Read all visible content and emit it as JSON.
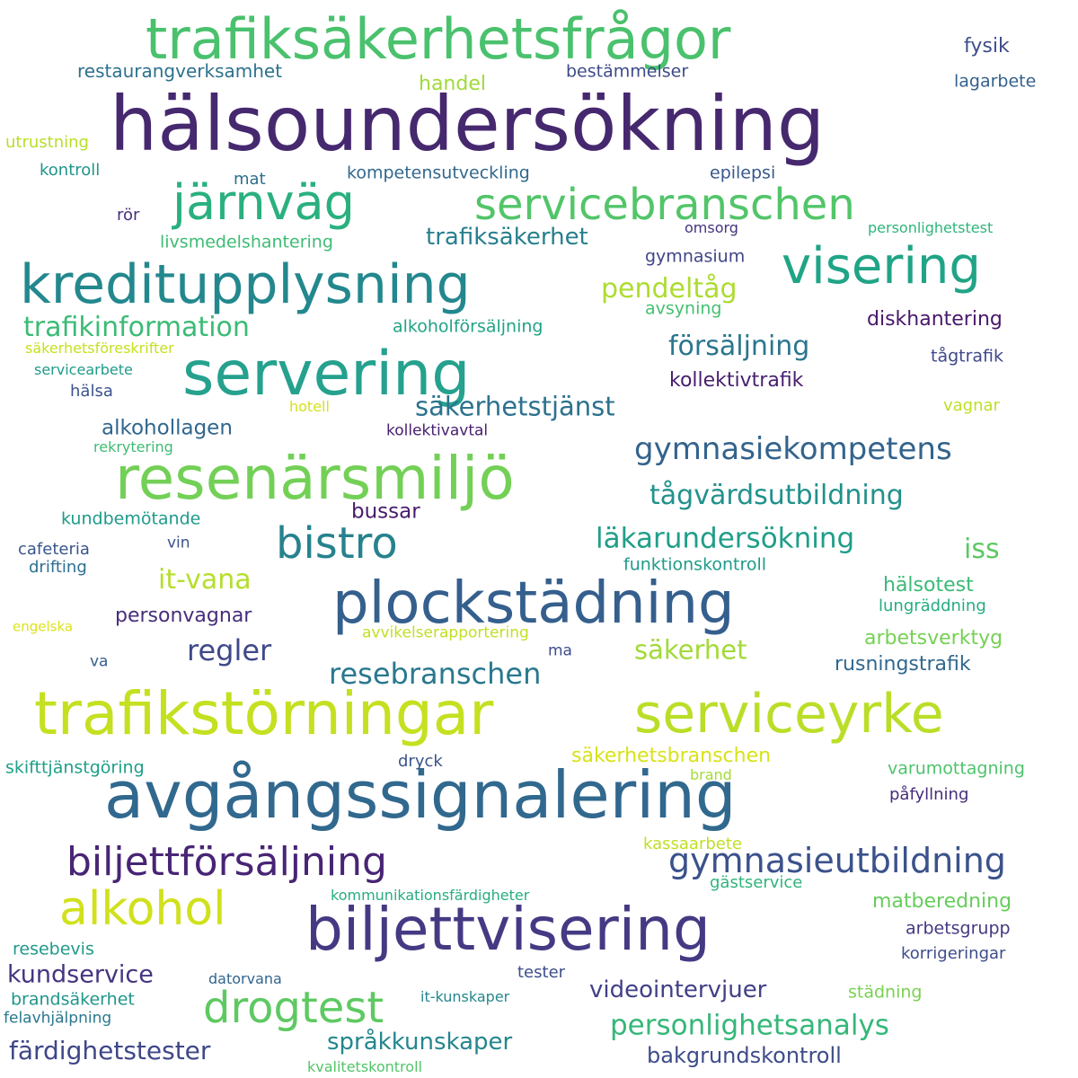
{
  "words": [
    {
      "text": "hälsoundersökning",
      "color": "#46286f"
    },
    {
      "text": "trafiksäkerhetsfrågor",
      "color": "#4ac16d"
    },
    {
      "text": "avgångssignalering",
      "color": "#31688e"
    },
    {
      "text": "trafikstörningar",
      "color": "#c5e021"
    },
    {
      "text": "serviceyrke",
      "color": "#bade28"
    },
    {
      "text": "biljettvisering",
      "color": "#443a83"
    },
    {
      "text": "plockstädning",
      "color": "#355f8d"
    },
    {
      "text": "resenärsmiljö",
      "color": "#73d056"
    },
    {
      "text": "servering",
      "color": "#25a18e"
    },
    {
      "text": "kreditupplysning",
      "color": "#23888e"
    },
    {
      "text": "visering",
      "color": "#20a486"
    },
    {
      "text": "servicebranschen",
      "color": "#52c569"
    },
    {
      "text": "järnväg",
      "color": "#2ab07f"
    },
    {
      "text": "bistro",
      "color": "#26828e"
    },
    {
      "text": "alkohol",
      "color": "#d0e11c"
    },
    {
      "text": "drogtest",
      "color": "#5ec962"
    },
    {
      "text": "biljettförsäljning",
      "color": "#482475"
    },
    {
      "text": "gymnasieutbildning",
      "color": "#3b528b"
    },
    {
      "text": "gymnasiekompetens",
      "color": "#33638d"
    },
    {
      "text": "trafikinformation",
      "color": "#3bbb75"
    },
    {
      "text": "personlighetsanalys",
      "color": "#35b779"
    },
    {
      "text": "läkarundersökning",
      "color": "#1f9e89"
    },
    {
      "text": "tågvärdsutbildning",
      "color": "#21918c"
    },
    {
      "text": "resebranschen",
      "color": "#29788e"
    },
    {
      "text": "regler",
      "color": "#3e4989"
    },
    {
      "text": "försäljning",
      "color": "#2a768e"
    },
    {
      "text": "pendeltåg",
      "color": "#addc30"
    },
    {
      "text": "säkerhetstjänst",
      "color": "#2c728e"
    },
    {
      "text": "trafiksäkerhet",
      "color": "#277f8e"
    },
    {
      "text": "färdighetstester",
      "color": "#3f4788"
    },
    {
      "text": "videointervjuer",
      "color": "#424086"
    },
    {
      "text": "språkkunskaper",
      "color": "#24868e"
    },
    {
      "text": "kundservice",
      "color": "#453581"
    },
    {
      "text": "bakgrundskontroll",
      "color": "#3e4c8a"
    },
    {
      "text": "it-vana",
      "color": "#b5de2b"
    },
    {
      "text": "säkerhet",
      "color": "#a2da37"
    },
    {
      "text": "alkohollagen",
      "color": "#31668e"
    },
    {
      "text": "bussar",
      "color": "#481b6d"
    },
    {
      "text": "iss",
      "color": "#5cc863"
    },
    {
      "text": "hälsotest",
      "color": "#3aba76"
    },
    {
      "text": "arbetsverktyg",
      "color": "#75d054"
    },
    {
      "text": "rusningstrafik",
      "color": "#31678e"
    },
    {
      "text": "matberedning",
      "color": "#67cc5c"
    },
    {
      "text": "personvagnar",
      "color": "#472d7b"
    },
    {
      "text": "kollektivtrafik",
      "color": "#481f70"
    },
    {
      "text": "diskhantering",
      "color": "#48186a"
    },
    {
      "text": "säkerhetsbranschen",
      "color": "#d8e219"
    },
    {
      "text": "gymnasium",
      "color": "#404588"
    },
    {
      "text": "fysik",
      "color": "#3d4e8a"
    },
    {
      "text": "handel",
      "color": "#a0da39"
    },
    {
      "text": "lagarbete",
      "color": "#34618d"
    },
    {
      "text": "restaurangverksamhet",
      "color": "#2c718e"
    },
    {
      "text": "bestämmelser",
      "color": "#3e4a89"
    },
    {
      "text": "utrustning",
      "color": "#b8de29"
    },
    {
      "text": "kontroll",
      "color": "#1f958b"
    },
    {
      "text": "mat",
      "color": "#2e6e8e"
    },
    {
      "text": "kompetensutveckling",
      "color": "#31688e"
    },
    {
      "text": "epilepsi",
      "color": "#38588c"
    },
    {
      "text": "rör",
      "color": "#472f7d"
    },
    {
      "text": "omsorg",
      "color": "#46327e"
    },
    {
      "text": "personlighetstest",
      "color": "#2fb47c"
    },
    {
      "text": "livsmedelshantering",
      "color": "#3dbc74"
    },
    {
      "text": "avsyning",
      "color": "#44bf70"
    },
    {
      "text": "alkoholförsäljning",
      "color": "#20a386"
    },
    {
      "text": "säkerhetsföreskrifter",
      "color": "#c8e020"
    },
    {
      "text": "tågtrafik",
      "color": "#3f4889"
    },
    {
      "text": "servicearbete",
      "color": "#1e9b8a"
    },
    {
      "text": "hälsa",
      "color": "#3b528b"
    },
    {
      "text": "hotell",
      "color": "#d5e21a"
    },
    {
      "text": "kollektivavtal",
      "color": "#482071"
    },
    {
      "text": "vagnar",
      "color": "#bddf26"
    },
    {
      "text": "rekrytering",
      "color": "#3fbc73"
    },
    {
      "text": "kundbemötande",
      "color": "#1f9a8a"
    },
    {
      "text": "cafeteria",
      "color": "#39558c"
    },
    {
      "text": "vin",
      "color": "#3b528b"
    },
    {
      "text": "drifting",
      "color": "#2d708e"
    },
    {
      "text": "funktionskontroll",
      "color": "#1e9c89"
    },
    {
      "text": "lungräddning",
      "color": "#25ac82"
    },
    {
      "text": "engelska",
      "color": "#dde318"
    },
    {
      "text": "avvikelserapportering",
      "color": "#c2df23"
    },
    {
      "text": "ma",
      "color": "#3d4d8a"
    },
    {
      "text": "va",
      "color": "#355f8d"
    },
    {
      "text": "skifttjänstgöring",
      "color": "#1f9f88"
    },
    {
      "text": "dryck",
      "color": "#3b528b"
    },
    {
      "text": "brand",
      "color": "#a5db36"
    },
    {
      "text": "varumottagning",
      "color": "#4ec36b"
    },
    {
      "text": "påfyllning",
      "color": "#472c7a"
    },
    {
      "text": "kassaarbete",
      "color": "#c0df25"
    },
    {
      "text": "gästservice",
      "color": "#2fb47c"
    },
    {
      "text": "kommunikationsfärdigheter",
      "color": "#27ad81"
    },
    {
      "text": "arbetsgrupp",
      "color": "#453882"
    },
    {
      "text": "resebevis",
      "color": "#1f998a"
    },
    {
      "text": "korrigeringar",
      "color": "#3e4c8a"
    },
    {
      "text": "tester",
      "color": "#3c4f8a"
    },
    {
      "text": "datorvana",
      "color": "#32648e"
    },
    {
      "text": "brandsäkerhet",
      "color": "#1f968b"
    },
    {
      "text": "it-kunskaper",
      "color": "#24878e"
    },
    {
      "text": "städning",
      "color": "#7ad151"
    },
    {
      "text": "felavhjälpning",
      "color": "#2a788e"
    },
    {
      "text": "kvalitetskontroll",
      "color": "#52c569"
    }
  ]
}
